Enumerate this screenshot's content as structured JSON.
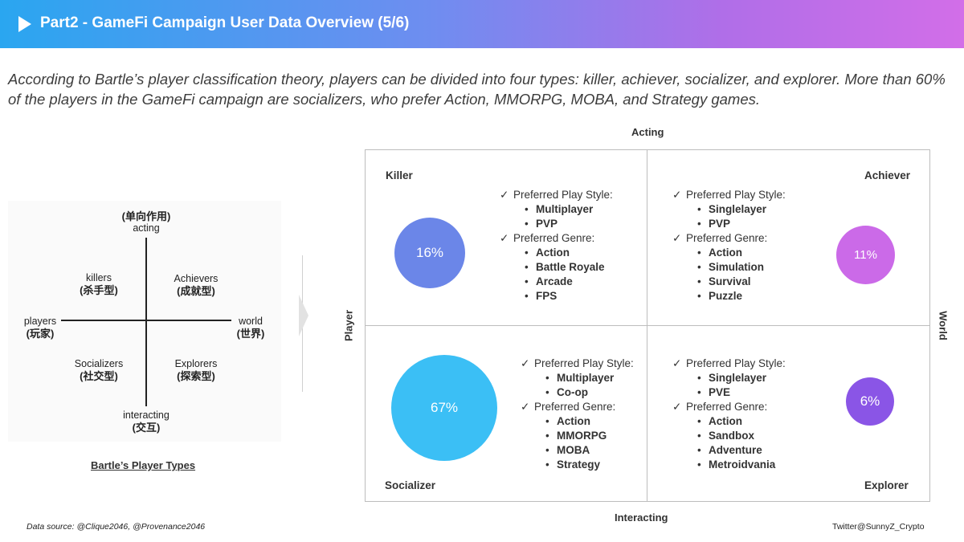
{
  "header": {
    "title": "Part2 - GameFi Campaign User Data Overview (5/6)"
  },
  "subtitle": "According to Bartle’s player classification theory, players can be divided into four types: killer, achiever, socializer, and explorer. More than 60% of the players in the GameFi campaign are socializers, who prefer Action, MMORPG, MOBA, and Strategy games.",
  "bartle": {
    "top_zh": "(单向作用)",
    "top_en": "acting",
    "bottom_en": "interacting",
    "bottom_zh": "(交互)",
    "left_en": "players",
    "left_zh": "(玩家)",
    "right_en": "world",
    "right_zh": "(世界)",
    "tl_en": "killers",
    "tl_zh": "(杀手型)",
    "tr_en": "Achievers",
    "tr_zh": "(成就型)",
    "bl_en": "Socializers",
    "bl_zh": "(社交型)",
    "br_en": "Explorers",
    "br_zh": "(探索型)",
    "caption": "Bartle’s Player Types"
  },
  "axes": {
    "top": "Acting",
    "bottom": "Interacting",
    "left": "Player",
    "right": "World"
  },
  "quadrants": {
    "killer": {
      "name": "Killer",
      "percent": "16%",
      "color": "#6b86e8",
      "style_label": "Preferred Play Style:",
      "styles": [
        "Multiplayer",
        "PVP"
      ],
      "genre_label": "Preferred Genre:",
      "genres": [
        "Action",
        "Battle Royale",
        "Arcade",
        "FPS"
      ]
    },
    "achiever": {
      "name": "Achiever",
      "percent": "11%",
      "color": "#cb6ae8",
      "style_label": "Preferred Play Style:",
      "styles": [
        "Singlelayer",
        "PVP"
      ],
      "genre_label": "Preferred Genre:",
      "genres": [
        "Action",
        "Simulation",
        "Survival",
        "Puzzle"
      ]
    },
    "socializer": {
      "name": "Socializer",
      "percent": "67%",
      "color": "#3bbff5",
      "style_label": "Preferred Play Style:",
      "styles": [
        "Multiplayer",
        "Co-op"
      ],
      "genre_label": "Preferred Genre:",
      "genres": [
        "Action",
        "MMORPG",
        "MOBA",
        "Strategy"
      ]
    },
    "explorer": {
      "name": "Explorer",
      "percent": "6%",
      "color": "#8a55e6",
      "style_label": "Preferred Play Style:",
      "styles": [
        "Singlelayer",
        "PVE"
      ],
      "genre_label": "Preferred Genre:",
      "genres": [
        "Action",
        "Sandbox",
        "Adventure",
        "Metroidvania"
      ]
    }
  },
  "check_glyph": "✓",
  "footer": {
    "source": "Data source: @Clique2046, @Provenance2046",
    "credit": "Twitter@SunnyZ_Crypto"
  }
}
